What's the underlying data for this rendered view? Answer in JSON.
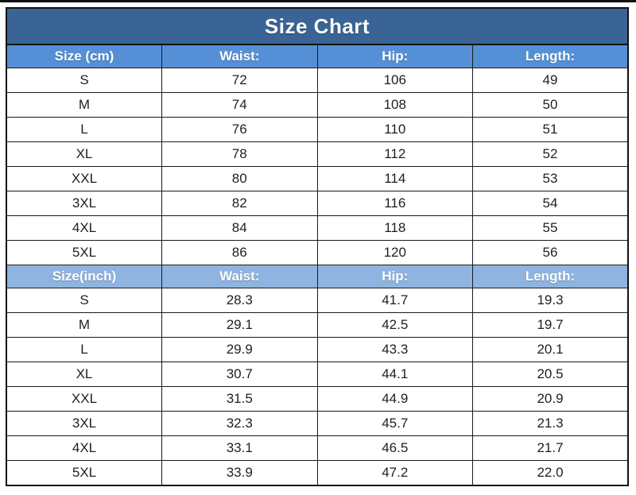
{
  "title": "Size Chart",
  "colors": {
    "title_bg": "#3A6496",
    "header_cm_bg": "#5590D6",
    "header_inch_bg": "#8FB4E0",
    "header_text": "#FFFFFF",
    "cell_text": "#1F1F1F",
    "border": "#1A1A1A"
  },
  "chart_data": {
    "type": "table",
    "title": "Size Chart",
    "sections": [
      {
        "id": "cm",
        "headers": [
          "Size (cm)",
          "Waist:",
          "Hip:",
          "Length:"
        ],
        "rows": [
          [
            "S",
            "72",
            "106",
            "49"
          ],
          [
            "M",
            "74",
            "108",
            "50"
          ],
          [
            "L",
            "76",
            "110",
            "51"
          ],
          [
            "XL",
            "78",
            "112",
            "52"
          ],
          [
            "XXL",
            "80",
            "114",
            "53"
          ],
          [
            "3XL",
            "82",
            "116",
            "54"
          ],
          [
            "4XL",
            "84",
            "118",
            "55"
          ],
          [
            "5XL",
            "86",
            "120",
            "56"
          ]
        ]
      },
      {
        "id": "inch",
        "headers": [
          "Size(inch)",
          "Waist:",
          "Hip:",
          "Length:"
        ],
        "rows": [
          [
            "S",
            "28.3",
            "41.7",
            "19.3"
          ],
          [
            "M",
            "29.1",
            "42.5",
            "19.7"
          ],
          [
            "L",
            "29.9",
            "43.3",
            "20.1"
          ],
          [
            "XL",
            "30.7",
            "44.1",
            "20.5"
          ],
          [
            "XXL",
            "31.5",
            "44.9",
            "20.9"
          ],
          [
            "3XL",
            "32.3",
            "45.7",
            "21.3"
          ],
          [
            "4XL",
            "33.1",
            "46.5",
            "21.7"
          ],
          [
            "5XL",
            "33.9",
            "47.2",
            "22.0"
          ]
        ]
      }
    ]
  }
}
